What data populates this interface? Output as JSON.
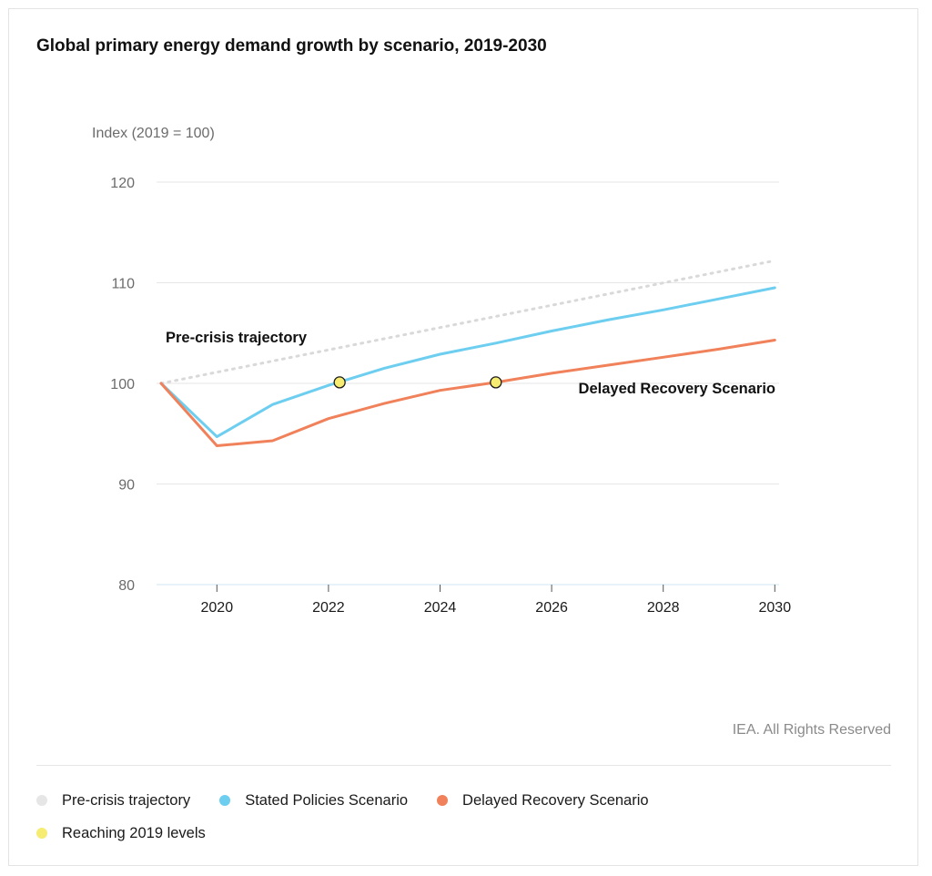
{
  "title": "Global primary energy demand growth by scenario, 2019-2030",
  "credit": "IEA. All Rights Reserved",
  "colors": {
    "pre_crisis": "#d9d9d9",
    "stated": "#6dcef0",
    "delayed": "#f0815a",
    "reaching": "#f6ec72",
    "grid": "#e6e6e6",
    "axis_text": "#6b6b6b",
    "tick_text": "#1a1a1a"
  },
  "legend": [
    {
      "label": "Pre-crisis trajectory",
      "color": "#e6e6e6"
    },
    {
      "label": "Stated Policies Scenario",
      "color": "#6dcef0"
    },
    {
      "label": "Delayed Recovery Scenario",
      "color": "#f0815a"
    },
    {
      "label": "Reaching 2019 levels",
      "color": "#f6ec72"
    }
  ],
  "chart_data": {
    "type": "line",
    "title": "Global primary energy demand growth by scenario, 2019-2030",
    "ylabel": "Index (2019 = 100)",
    "xlabel": "",
    "xlim": [
      2019,
      2030
    ],
    "ylim": [
      80,
      120
    ],
    "xticks": [
      2020,
      2022,
      2024,
      2026,
      2028,
      2030
    ],
    "yticks": [
      80,
      90,
      100,
      110,
      120
    ],
    "grid": true,
    "legend_position": "bottom",
    "series": [
      {
        "name": "Pre-crisis trajectory",
        "style": "dotted",
        "x": [
          2019,
          2030
        ],
        "y": [
          100,
          112.2
        ]
      },
      {
        "name": "Stated Policies Scenario",
        "x": [
          2019,
          2020,
          2021,
          2022,
          2023,
          2024,
          2025,
          2026,
          2027,
          2028,
          2029,
          2030
        ],
        "y": [
          100,
          94.7,
          97.9,
          99.8,
          101.5,
          102.9,
          104.0,
          105.2,
          106.3,
          107.3,
          108.4,
          109.5
        ]
      },
      {
        "name": "Delayed Recovery Scenario",
        "x": [
          2019,
          2020,
          2021,
          2022,
          2023,
          2024,
          2025,
          2026,
          2027,
          2028,
          2029,
          2030
        ],
        "y": [
          100,
          93.8,
          94.3,
          96.5,
          98.0,
          99.3,
          100.1,
          101.0,
          101.8,
          102.6,
          103.4,
          104.3
        ]
      },
      {
        "name": "Reaching 2019 levels",
        "type": "scatter",
        "x": [
          2022.2,
          2025.0
        ],
        "y": [
          100.1,
          100.1
        ]
      }
    ],
    "annotations": [
      {
        "text": "Pre-crisis trajectory",
        "x": 2019.1,
        "y": 104.5
      },
      {
        "text": "Delayed Recovery Scenario",
        "x": 2030,
        "y": 99.6
      }
    ]
  }
}
